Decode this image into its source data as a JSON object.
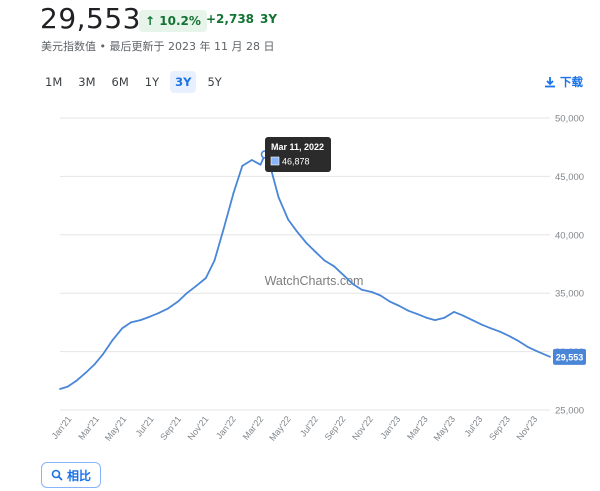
{
  "header": {
    "price": "29,553",
    "pct_change": "10.2%",
    "abs_change": "+2,738",
    "period": "3Y",
    "subtitle": "美元指数值 • 最后更新于 2023 年 11 月 28 日"
  },
  "ranges": [
    "1M",
    "3M",
    "6M",
    "1Y",
    "3Y",
    "5Y"
  ],
  "active_range": "3Y",
  "download_label": "下载",
  "compare_label": "相比",
  "watermark": "WatchCharts.com",
  "tooltip": {
    "date": "Mar 11, 2022",
    "value": "46,878"
  },
  "last_value_label": "29,553",
  "colors": {
    "line": "#4a86d8",
    "grid": "#e5e5e5",
    "accent": "#1a73e8",
    "positive": "#137333"
  },
  "chart_data": {
    "type": "line",
    "title": "",
    "xlabel": "",
    "ylabel": "",
    "ylim": [
      25000,
      50000
    ],
    "y_ticks": [
      "25,000",
      "30,000",
      "35,000",
      "40,000",
      "45,000",
      "50,000"
    ],
    "x_ticks": [
      "Jan'21",
      "Mar'21",
      "May'21",
      "Jul'21",
      "Sep'21",
      "Nov'21",
      "Jan'22",
      "Mar'22",
      "May'22",
      "Jul'22",
      "Sep'22",
      "Nov'22",
      "Jan'23",
      "Mar'23",
      "May'23",
      "Jul'23",
      "Sep'23",
      "Nov'23"
    ],
    "series": [
      {
        "x": [
          "2020-12-15",
          "2021-01-01",
          "2021-01-20",
          "2021-02-10",
          "2021-03-01",
          "2021-03-20",
          "2021-04-10",
          "2021-05-01",
          "2021-05-20",
          "2021-06-10",
          "2021-07-01",
          "2021-07-20",
          "2021-08-10",
          "2021-09-01",
          "2021-09-20",
          "2021-10-10",
          "2021-11-01",
          "2021-11-20",
          "2021-12-10",
          "2022-01-01",
          "2022-01-20",
          "2022-02-10",
          "2022-03-01",
          "2022-03-11",
          "2022-03-25",
          "2022-04-10",
          "2022-05-01",
          "2022-05-20",
          "2022-06-10",
          "2022-07-01",
          "2022-07-20",
          "2022-08-10",
          "2022-09-01",
          "2022-09-20",
          "2022-10-10",
          "2022-11-01",
          "2022-11-20",
          "2022-12-10",
          "2023-01-01",
          "2023-01-20",
          "2023-02-10",
          "2023-03-01",
          "2023-03-20",
          "2023-04-10",
          "2023-05-01",
          "2023-05-20",
          "2023-06-10",
          "2023-07-01",
          "2023-07-20",
          "2023-08-10",
          "2023-09-01",
          "2023-09-20",
          "2023-10-10",
          "2023-11-01",
          "2023-11-28"
        ],
        "values": [
          26800,
          27000,
          27500,
          28200,
          28900,
          29800,
          31000,
          32000,
          32500,
          32700,
          33000,
          33300,
          33700,
          34300,
          35000,
          35600,
          36300,
          37800,
          40500,
          43600,
          45900,
          46400,
          46000,
          46878,
          45500,
          43200,
          41300,
          40300,
          39300,
          38500,
          37800,
          37300,
          36500,
          35800,
          35300,
          35100,
          34800,
          34300,
          33900,
          33500,
          33200,
          32900,
          32700,
          32900,
          33400,
          33100,
          32700,
          32300,
          32000,
          31700,
          31300,
          30900,
          30400,
          30000,
          29553
        ]
      }
    ]
  }
}
